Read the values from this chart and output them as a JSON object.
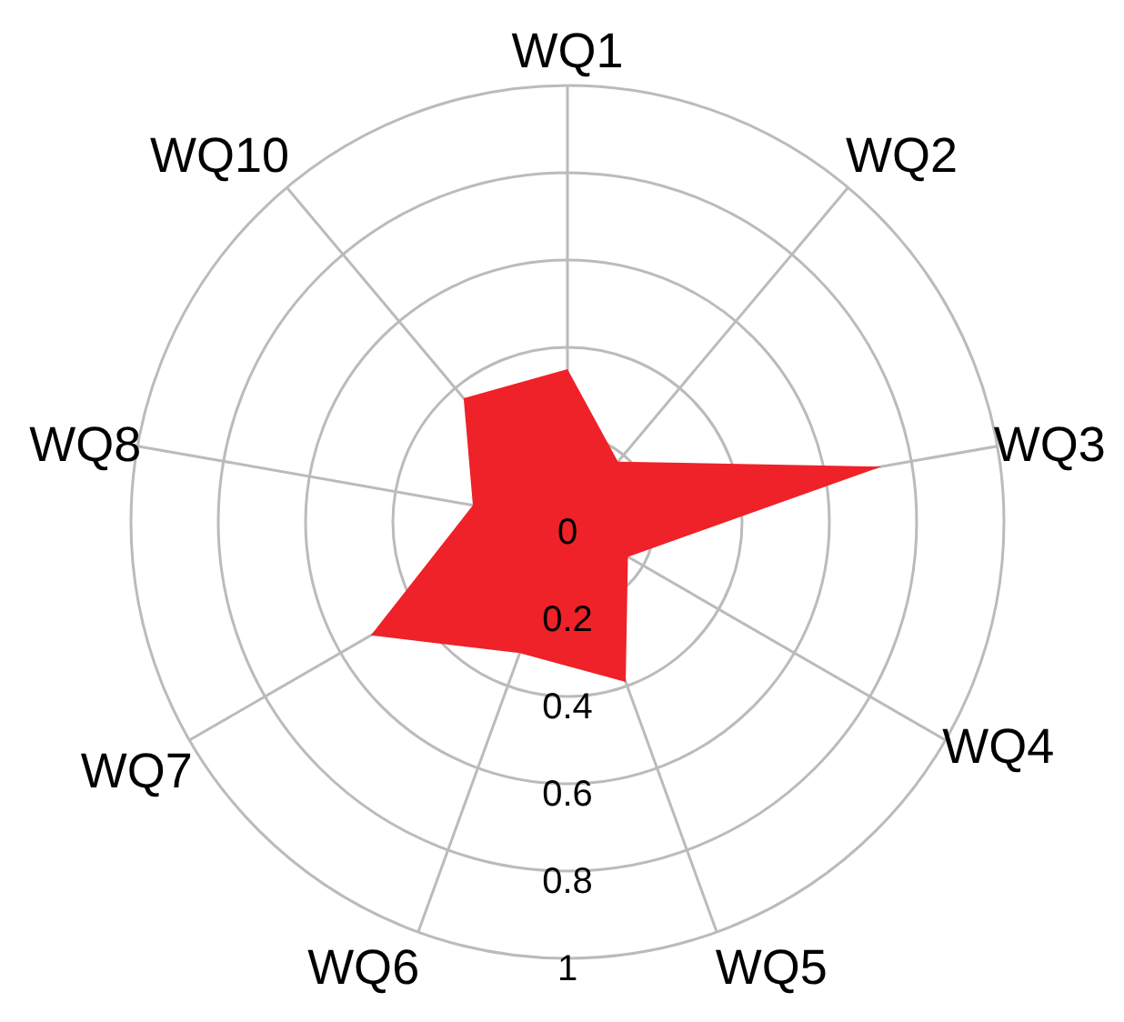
{
  "chart_data": {
    "type": "radar",
    "categories": [
      "WQ1",
      "WQ2",
      "WQ3",
      "WQ4",
      "WQ5",
      "WQ6",
      "WQ7",
      "WQ8",
      "WQ10"
    ],
    "series": [
      {
        "color": "#ee2228",
        "values": [
          0.35,
          0.18,
          0.73,
          0.16,
          0.39,
          0.32,
          0.52,
          0.22,
          0.37
        ]
      }
    ],
    "ylim": [
      0,
      1
    ],
    "yticks": [
      0,
      0.2,
      0.4,
      0.6,
      0.8,
      1
    ],
    "grid": true
  }
}
